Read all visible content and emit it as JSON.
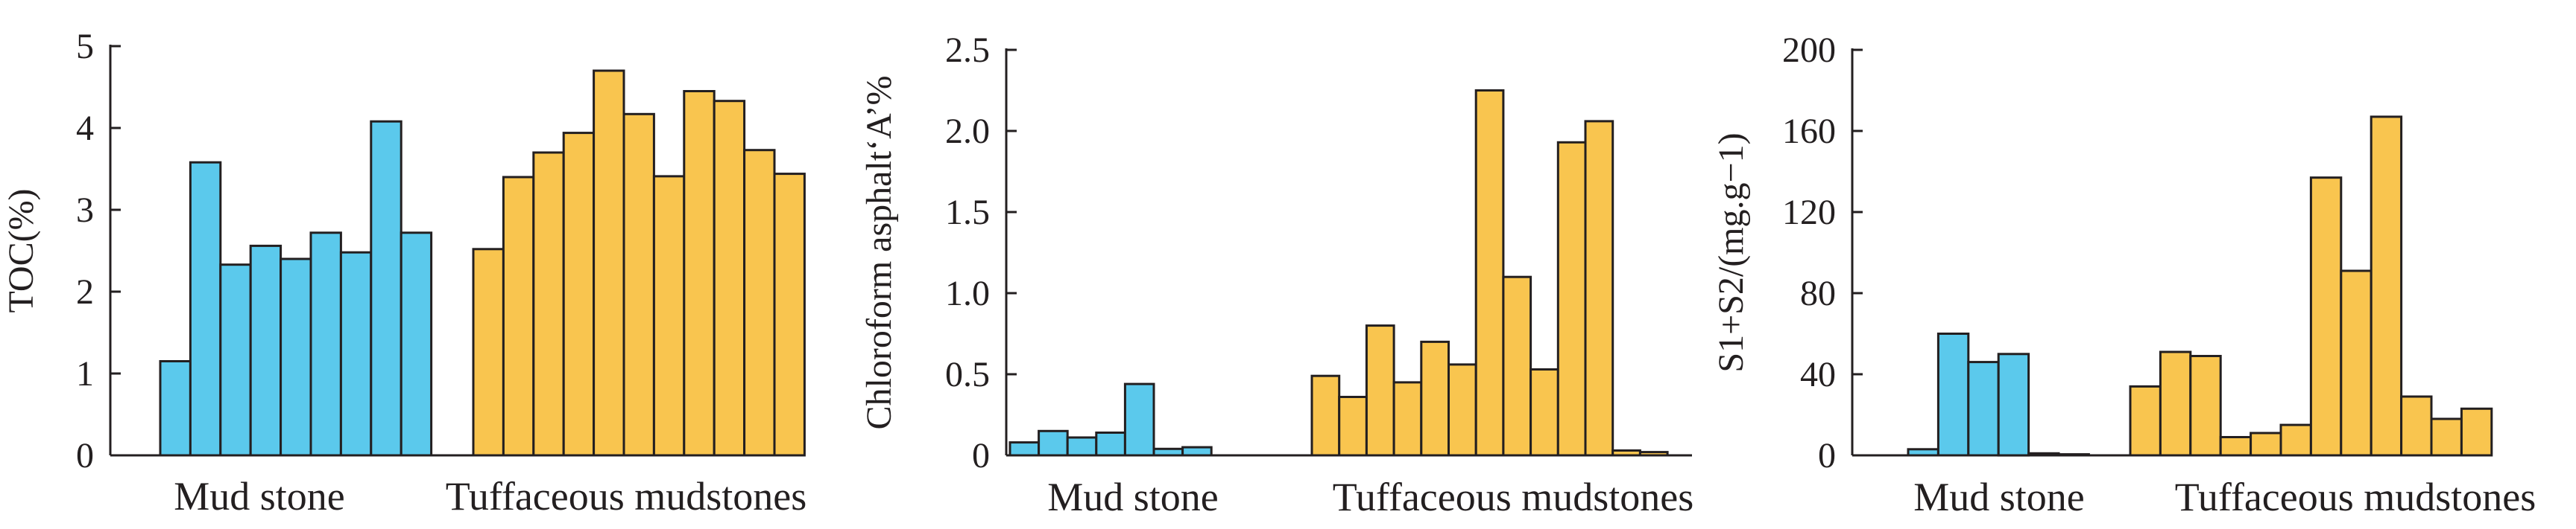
{
  "colors": {
    "mud_stone": "#5bc9ec",
    "tuffaceous": "#f9c54f",
    "axis": "#231f20"
  },
  "chart_data": [
    {
      "type": "bar",
      "ylabel": "TOC(%)",
      "ylim": [
        0,
        5
      ],
      "yticks": [
        "0",
        "1",
        "2",
        "3",
        "4",
        "5"
      ],
      "yticks_values": [
        0,
        1,
        2,
        3,
        4,
        5
      ],
      "groups": [
        {
          "name": "Mud stone",
          "color_key": "mud_stone",
          "values": [
            1.15,
            3.58,
            2.33,
            2.56,
            2.4,
            2.72,
            2.48,
            4.08,
            2.72
          ]
        },
        {
          "name": "Tuffaceous mudstones",
          "color_key": "tuffaceous",
          "values": [
            2.52,
            3.4,
            3.7,
            3.94,
            4.7,
            4.17,
            3.41,
            4.45,
            4.33,
            3.73,
            3.44
          ]
        }
      ],
      "grid": false
    },
    {
      "type": "bar",
      "ylabel": "Chloroform asphalt‘A’%",
      "ylim": [
        0,
        2.5
      ],
      "yticks": [
        "0",
        "0.5",
        "1.0",
        "1.5",
        "2.0",
        "2.5"
      ],
      "yticks_values": [
        0,
        0.5,
        1.0,
        1.5,
        2.0,
        2.5
      ],
      "groups": [
        {
          "name": "Mud stone",
          "color_key": "mud_stone",
          "values": [
            0.08,
            0.15,
            0.11,
            0.14,
            0.44,
            0.04,
            0.05
          ]
        },
        {
          "name": "Tuffaceous mudstones",
          "color_key": "tuffaceous",
          "values": [
            0.49,
            0.36,
            0.8,
            0.45,
            0.7,
            0.56,
            2.25,
            1.1,
            0.53,
            1.93,
            2.06,
            0.03,
            0.02
          ]
        }
      ],
      "grid": false
    },
    {
      "type": "bar",
      "ylabel": "S1+S2/(mg.g−1)",
      "ylim": [
        0,
        200
      ],
      "yticks": [
        "0",
        "40",
        "80",
        "120",
        "160",
        "200"
      ],
      "yticks_values": [
        0,
        40,
        80,
        120,
        160,
        200
      ],
      "groups": [
        {
          "name": "Mud stone",
          "color_key": "mud_stone",
          "values": [
            3,
            60,
            46,
            50,
            1,
            0.5
          ]
        },
        {
          "name": "Tuffaceous mudstones",
          "color_key": "tuffaceous",
          "values": [
            34,
            51,
            49,
            9,
            11,
            15,
            137,
            91,
            167,
            29,
            18,
            23
          ]
        }
      ],
      "grid": false
    }
  ]
}
